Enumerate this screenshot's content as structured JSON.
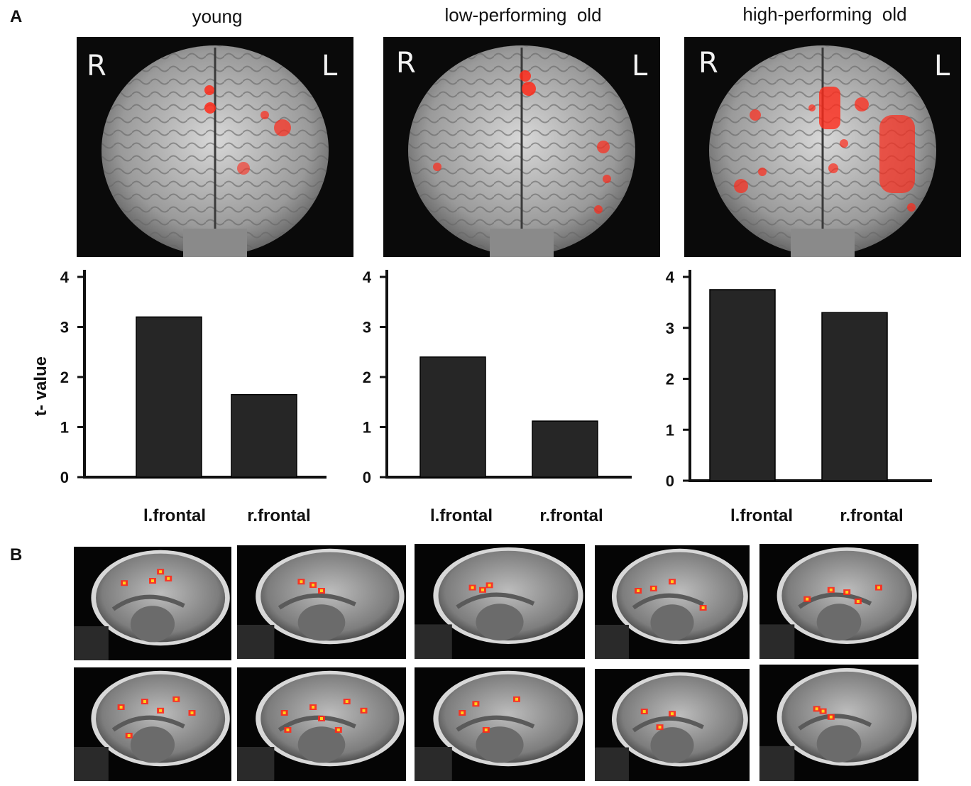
{
  "panels": {
    "a": "A",
    "b": "B"
  },
  "groups": [
    {
      "title": "young"
    },
    {
      "title": "low-performing  old"
    },
    {
      "title": "high-performing  old"
    }
  ],
  "brain_labels": {
    "right": "R",
    "left": "L"
  },
  "colors": {
    "bar": "#262626",
    "activation": "#ff2a1a",
    "background": "#0a0a0a"
  },
  "chart_data": [
    {
      "type": "bar",
      "title": "young",
      "categories": [
        "l.frontal",
        "r.frontal"
      ],
      "values": [
        3.2,
        1.65
      ],
      "ylabel": "t- value",
      "ylim": [
        0,
        4
      ],
      "yticks": [
        "0",
        "1",
        "2",
        "3",
        "4"
      ]
    },
    {
      "type": "bar",
      "title": "low-performing  old",
      "categories": [
        "l.frontal",
        "r.frontal"
      ],
      "values": [
        2.4,
        1.12
      ],
      "ylim": [
        0,
        4
      ],
      "yticks": [
        "0",
        "1",
        "2",
        "3",
        "4"
      ]
    },
    {
      "type": "bar",
      "title": "high-performing  old",
      "categories": [
        "l.frontal",
        "r.frontal"
      ],
      "values": [
        3.75,
        3.3
      ],
      "ylim": [
        0,
        4
      ],
      "yticks": [
        "0",
        "1",
        "2",
        "3",
        "4"
      ]
    }
  ]
}
